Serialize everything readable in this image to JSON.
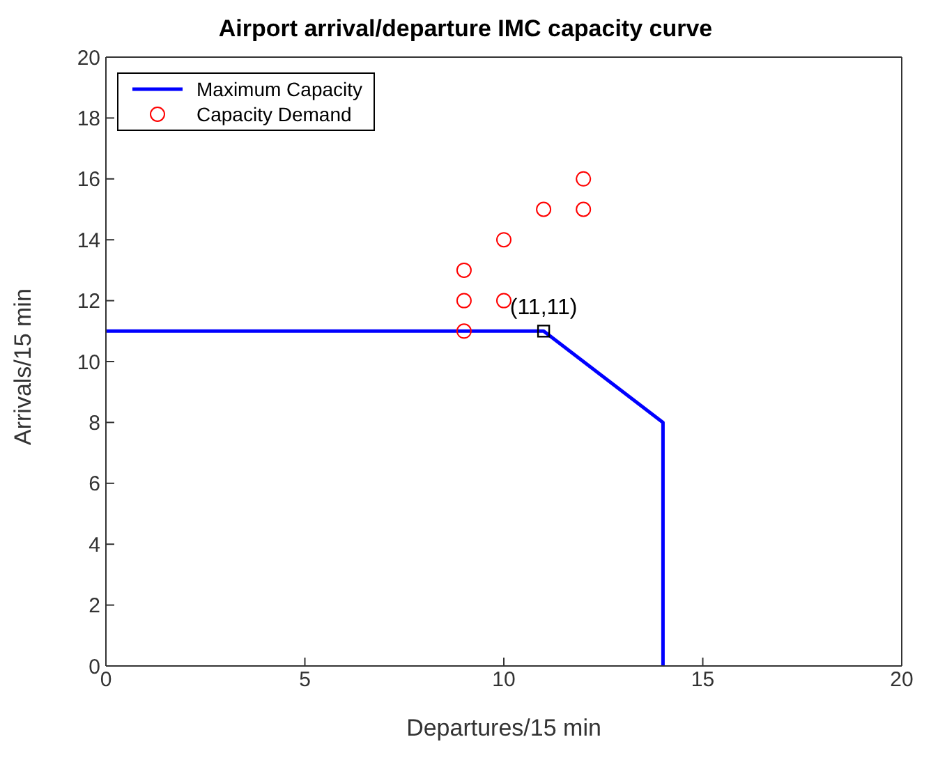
{
  "chart_data": {
    "type": "line",
    "title": "Airport arrival/departure IMC capacity curve",
    "xlabel": "Departures/15 min",
    "ylabel": "Arrivals/15 min",
    "xlim": [
      0,
      20
    ],
    "xticks": [
      0,
      5,
      10,
      15,
      20
    ],
    "ylim": [
      0,
      20
    ],
    "yticks": [
      0,
      2,
      4,
      6,
      8,
      10,
      12,
      14,
      16,
      18,
      20
    ],
    "legend": "top left",
    "series": [
      {
        "name": "Maximum Capacity",
        "color": "#0000ff",
        "marker": "none",
        "x": [
          0,
          11,
          14,
          14
        ],
        "values": [
          11,
          11,
          8,
          0
        ]
      },
      {
        "name": "Capacity Demand",
        "type": "scatter",
        "color": "#ff0000",
        "marker": "circle",
        "x": [
          9,
          9,
          9,
          10,
          10,
          11,
          12,
          12
        ],
        "values": [
          11,
          12,
          13,
          12,
          14,
          15,
          15,
          16
        ]
      },
      {
        "type": "scatter",
        "color": "#000000",
        "marker": "square",
        "x": [
          11
        ],
        "values": [
          11
        ]
      }
    ],
    "annotations": [
      {
        "text": "(11,11)",
        "x": 11,
        "y": 11
      }
    ]
  }
}
